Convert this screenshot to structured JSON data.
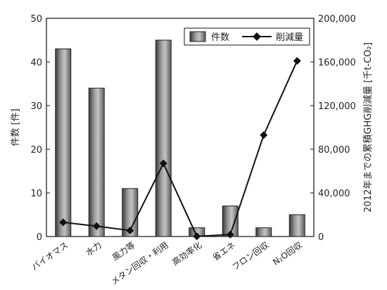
{
  "chart_data": {
    "type": "bar",
    "title": "",
    "categories": [
      "バイオマス",
      "水力",
      "風力等",
      "メタン回収・利用",
      "高効率化",
      "省エネ",
      "フロン回収",
      "N₂O回収"
    ],
    "y_left": {
      "label": "件数 [件]",
      "ylim": [
        0,
        50
      ],
      "ticks": [
        "0",
        "10",
        "20",
        "30",
        "40",
        "50"
      ]
    },
    "y_right": {
      "label": "2012年までの累積GHG削減量 [千t-CO₂]",
      "ylim": [
        0,
        200000
      ],
      "ticks": [
        "0",
        "40,000",
        "80,000",
        "120,000",
        "160,000",
        "200,000"
      ]
    },
    "series": [
      {
        "name": "件数",
        "kind": "bar",
        "axis": "left",
        "values": [
          43,
          34,
          11,
          45,
          2,
          7,
          2,
          5
        ]
      },
      {
        "name": "削減量",
        "kind": "line",
        "axis": "right",
        "values": [
          13000,
          9500,
          5500,
          67000,
          200,
          1800,
          93000,
          161000
        ]
      }
    ],
    "legend": {
      "position": "top-right",
      "items": [
        "件数",
        "削減量"
      ]
    },
    "grid": false
  }
}
